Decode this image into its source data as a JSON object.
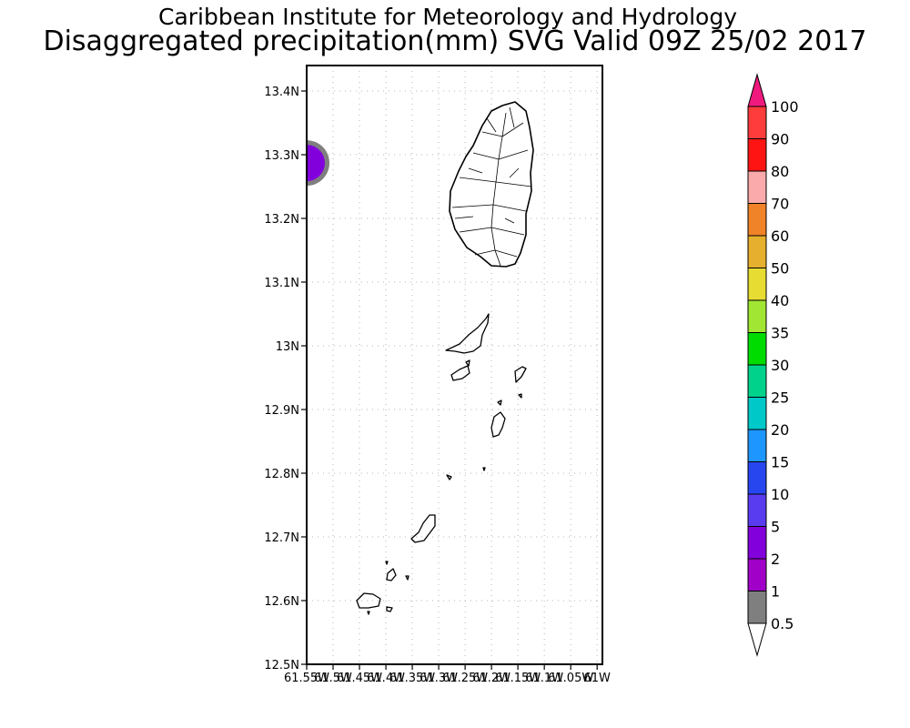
{
  "header": {
    "title_line1": "Caribbean Institute for Meteorology and Hydrology",
    "title_line2": "Disaggregated precipitation(mm) SVG Valid 09Z 25/02 2017"
  },
  "map": {
    "lat_range": [
      12.5,
      13.44
    ],
    "lon_range": [
      -61.55,
      -60.99
    ],
    "lat_ticks": [
      {
        "value": 13.4,
        "label": "13.4N"
      },
      {
        "value": 13.3,
        "label": "13.3N"
      },
      {
        "value": 13.2,
        "label": "13.2N"
      },
      {
        "value": 13.1,
        "label": "13.1N"
      },
      {
        "value": 13.0,
        "label": "13N"
      },
      {
        "value": 12.9,
        "label": "12.9N"
      },
      {
        "value": 12.8,
        "label": "12.8N"
      },
      {
        "value": 12.7,
        "label": "12.7N"
      },
      {
        "value": 12.6,
        "label": "12.6N"
      },
      {
        "value": 12.5,
        "label": "12.5N"
      }
    ],
    "lon_ticks": [
      {
        "value": -61.55,
        "label": "61.55W"
      },
      {
        "value": -61.5,
        "label": "61.5W"
      },
      {
        "value": -61.45,
        "label": "61.45W"
      },
      {
        "value": -61.4,
        "label": "61.4W"
      },
      {
        "value": -61.35,
        "label": "61.35W"
      },
      {
        "value": -61.3,
        "label": "61.3W"
      },
      {
        "value": -61.25,
        "label": "61.25W"
      },
      {
        "value": -61.2,
        "label": "61.2W"
      },
      {
        "value": -61.15,
        "label": "61.15W"
      },
      {
        "value": -61.1,
        "label": "61.1W"
      },
      {
        "value": -61.05,
        "label": "61.05W"
      },
      {
        "value": -61.0,
        "label": "61W"
      }
    ],
    "grid": true,
    "precip_features": [
      {
        "lon": -61.55,
        "lat": 13.287,
        "outer_category": "0.5",
        "inner_category": "2"
      }
    ]
  },
  "colorbar": {
    "levels": [
      "0.5",
      "1",
      "2",
      "5",
      "10",
      "15",
      "20",
      "25",
      "30",
      "35",
      "40",
      "50",
      "60",
      "70",
      "80",
      "90",
      "100"
    ],
    "colors": [
      "#7f7f7f",
      "#a000c8",
      "#8200dc",
      "#5a3cf0",
      "#2846f0",
      "#1e96ff",
      "#00c8c8",
      "#00d28c",
      "#00dc00",
      "#a0e632",
      "#e6dc32",
      "#e6af2d",
      "#f08228",
      "#faaaaa",
      "#ff1414",
      "#ff3c3c"
    ],
    "under_color": "#ffffff",
    "over_color": "#f0197d"
  }
}
